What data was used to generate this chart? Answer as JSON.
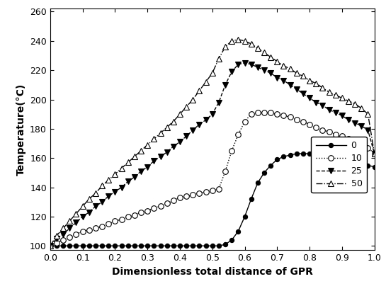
{
  "title": "",
  "xlabel": "Dimensionless total distance of GPR",
  "ylabel": "Temperature(°C)",
  "xlim": [
    0.0,
    1.0
  ],
  "ylim": [
    97,
    262
  ],
  "yticks": [
    100,
    120,
    140,
    160,
    180,
    200,
    220,
    240,
    260
  ],
  "xticks": [
    0.0,
    0.1,
    0.2,
    0.3,
    0.4,
    0.5,
    0.6,
    0.7,
    0.8,
    0.9,
    1.0
  ],
  "series": {
    "0": {
      "style": "-",
      "marker": "o",
      "markerfacecolor": "black",
      "markersize": 4.5,
      "color": "black",
      "label": "0",
      "x": [
        0.0,
        0.02,
        0.04,
        0.06,
        0.08,
        0.1,
        0.12,
        0.14,
        0.16,
        0.18,
        0.2,
        0.22,
        0.24,
        0.26,
        0.28,
        0.3,
        0.32,
        0.34,
        0.36,
        0.38,
        0.4,
        0.42,
        0.44,
        0.46,
        0.48,
        0.5,
        0.52,
        0.54,
        0.56,
        0.58,
        0.6,
        0.62,
        0.64,
        0.66,
        0.68,
        0.7,
        0.72,
        0.74,
        0.76,
        0.78,
        0.8,
        0.82,
        0.84,
        0.86,
        0.88,
        0.9,
        0.92,
        0.94,
        0.96,
        0.98,
        1.0
      ],
      "y": [
        100,
        100,
        100,
        100,
        100,
        100,
        100,
        100,
        100,
        100,
        100,
        100,
        100,
        100,
        100,
        100,
        100,
        100,
        100,
        100,
        100,
        100,
        100,
        100,
        100,
        100,
        100,
        101,
        104,
        110,
        120,
        132,
        143,
        150,
        155,
        159,
        161,
        162,
        163,
        163,
        163,
        163,
        163,
        162,
        161,
        160,
        159,
        158,
        157,
        155,
        154
      ]
    },
    "10": {
      "style": ":",
      "marker": "o",
      "markerfacecolor": "white",
      "markersize": 5.5,
      "color": "black",
      "label": "10",
      "x": [
        0.0,
        0.02,
        0.04,
        0.06,
        0.08,
        0.1,
        0.12,
        0.14,
        0.16,
        0.18,
        0.2,
        0.22,
        0.24,
        0.26,
        0.28,
        0.3,
        0.32,
        0.34,
        0.36,
        0.38,
        0.4,
        0.42,
        0.44,
        0.46,
        0.48,
        0.5,
        0.52,
        0.54,
        0.56,
        0.58,
        0.6,
        0.62,
        0.64,
        0.66,
        0.68,
        0.7,
        0.72,
        0.74,
        0.76,
        0.78,
        0.8,
        0.82,
        0.84,
        0.86,
        0.88,
        0.9,
        0.92,
        0.94,
        0.96,
        0.98,
        1.0
      ],
      "y": [
        100,
        102,
        104,
        106,
        108,
        110,
        111,
        112,
        113,
        115,
        117,
        118,
        120,
        121,
        123,
        124,
        126,
        127,
        129,
        131,
        133,
        134,
        135,
        136,
        137,
        138,
        139,
        151,
        165,
        176,
        185,
        190,
        191,
        191,
        191,
        190,
        189,
        188,
        186,
        185,
        183,
        181,
        179,
        178,
        176,
        175,
        173,
        171,
        169,
        167,
        163
      ]
    },
    "25": {
      "style": "--",
      "marker": "v",
      "markerfacecolor": "black",
      "markersize": 6,
      "color": "black",
      "label": "25",
      "x": [
        0.0,
        0.02,
        0.04,
        0.06,
        0.08,
        0.1,
        0.12,
        0.14,
        0.16,
        0.18,
        0.2,
        0.22,
        0.24,
        0.26,
        0.28,
        0.3,
        0.32,
        0.34,
        0.36,
        0.38,
        0.4,
        0.42,
        0.44,
        0.46,
        0.48,
        0.5,
        0.52,
        0.54,
        0.56,
        0.58,
        0.6,
        0.62,
        0.64,
        0.66,
        0.68,
        0.7,
        0.72,
        0.74,
        0.76,
        0.78,
        0.8,
        0.82,
        0.84,
        0.86,
        0.88,
        0.9,
        0.92,
        0.94,
        0.96,
        0.98,
        1.0
      ],
      "y": [
        100,
        105,
        108,
        112,
        116,
        120,
        123,
        127,
        130,
        134,
        137,
        140,
        144,
        147,
        151,
        154,
        158,
        161,
        164,
        168,
        171,
        175,
        179,
        183,
        186,
        190,
        198,
        210,
        219,
        224,
        225,
        224,
        222,
        220,
        218,
        215,
        213,
        210,
        207,
        204,
        201,
        198,
        196,
        193,
        191,
        189,
        186,
        184,
        182,
        179,
        163
      ]
    },
    "50": {
      "style": "-.",
      "marker": "^",
      "markerfacecolor": "white",
      "markersize": 6,
      "color": "black",
      "label": "50",
      "x": [
        0.0,
        0.02,
        0.04,
        0.06,
        0.08,
        0.1,
        0.12,
        0.14,
        0.16,
        0.18,
        0.2,
        0.22,
        0.24,
        0.26,
        0.28,
        0.3,
        0.32,
        0.34,
        0.36,
        0.38,
        0.4,
        0.42,
        0.44,
        0.46,
        0.48,
        0.5,
        0.52,
        0.54,
        0.56,
        0.58,
        0.6,
        0.62,
        0.64,
        0.66,
        0.68,
        0.7,
        0.72,
        0.74,
        0.76,
        0.78,
        0.8,
        0.82,
        0.84,
        0.86,
        0.88,
        0.9,
        0.92,
        0.94,
        0.96,
        0.98,
        1.0
      ],
      "y": [
        100,
        107,
        112,
        117,
        122,
        127,
        132,
        136,
        141,
        145,
        149,
        153,
        157,
        161,
        165,
        169,
        173,
        177,
        181,
        185,
        190,
        195,
        200,
        206,
        212,
        218,
        228,
        236,
        240,
        241,
        240,
        238,
        235,
        232,
        229,
        226,
        223,
        221,
        218,
        216,
        213,
        211,
        208,
        205,
        203,
        201,
        199,
        197,
        194,
        190,
        163
      ]
    }
  },
  "background_color": "#ffffff"
}
